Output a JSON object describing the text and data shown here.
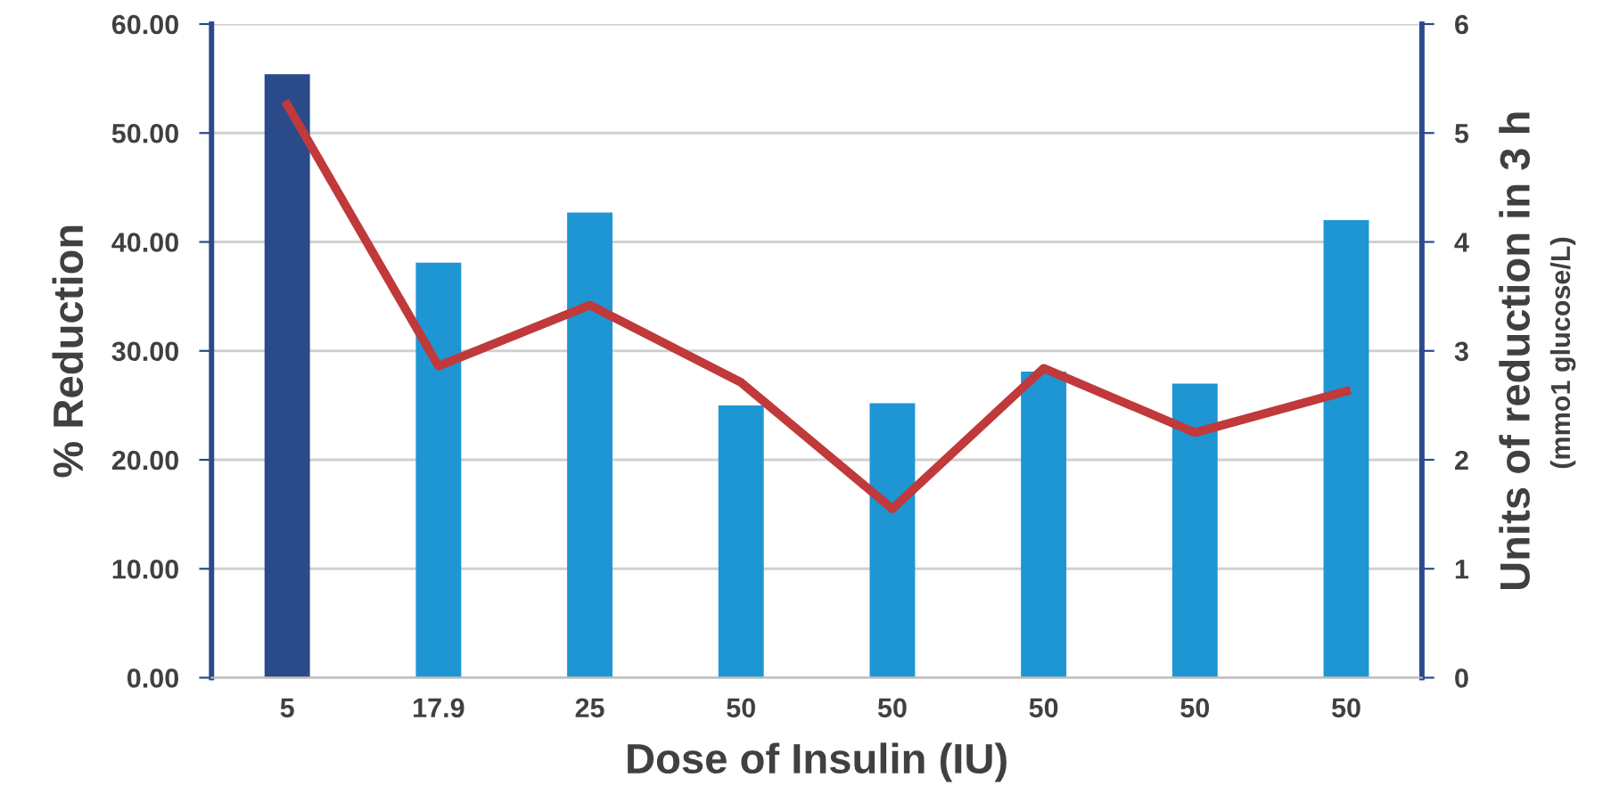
{
  "chart_data": {
    "type": "bar",
    "xlabel": "Dose of Insulin (IU)",
    "ylabel": "% Reduction",
    "y2label": "Units of reduction in 3 h",
    "annotations": [
      "(mmo1 glucose/L)"
    ],
    "categories": [
      "5",
      "17.9",
      "25",
      "50",
      "50",
      "50",
      "50",
      "50"
    ],
    "series": [
      {
        "colors": [
          "#2a4a8a",
          "#1e96d4",
          "#1e96d4",
          "#1e96d4",
          "#1e96d4",
          "#1e96d4",
          "#1e96d4",
          "#1e96d4"
        ],
        "values": [
          55.4,
          38.1,
          42.7,
          25.0,
          25.2,
          28.1,
          27.0,
          42.0
        ]
      },
      {
        "type": "line",
        "axis": "y2",
        "color": "#c0393b",
        "values": [
          5.26,
          2.86,
          3.42,
          2.71,
          1.55,
          2.84,
          2.25,
          2.63
        ]
      }
    ],
    "ylim": [
      0,
      60
    ],
    "yticks": [
      {
        "value": 0,
        "label": "0.00"
      },
      {
        "value": 10,
        "label": "10.00"
      },
      {
        "value": 20,
        "label": "20.00"
      },
      {
        "value": 30,
        "label": "30.00"
      },
      {
        "value": 40,
        "label": "40.00"
      },
      {
        "value": 50,
        "label": "50.00"
      },
      {
        "value": 60,
        "label": "60.00"
      }
    ],
    "y2lim": [
      0,
      6
    ],
    "y2ticks": [
      0,
      1,
      2,
      3,
      4,
      5,
      6
    ],
    "grid": "y",
    "legend": false,
    "marker": "none",
    "line_style": "solid"
  }
}
